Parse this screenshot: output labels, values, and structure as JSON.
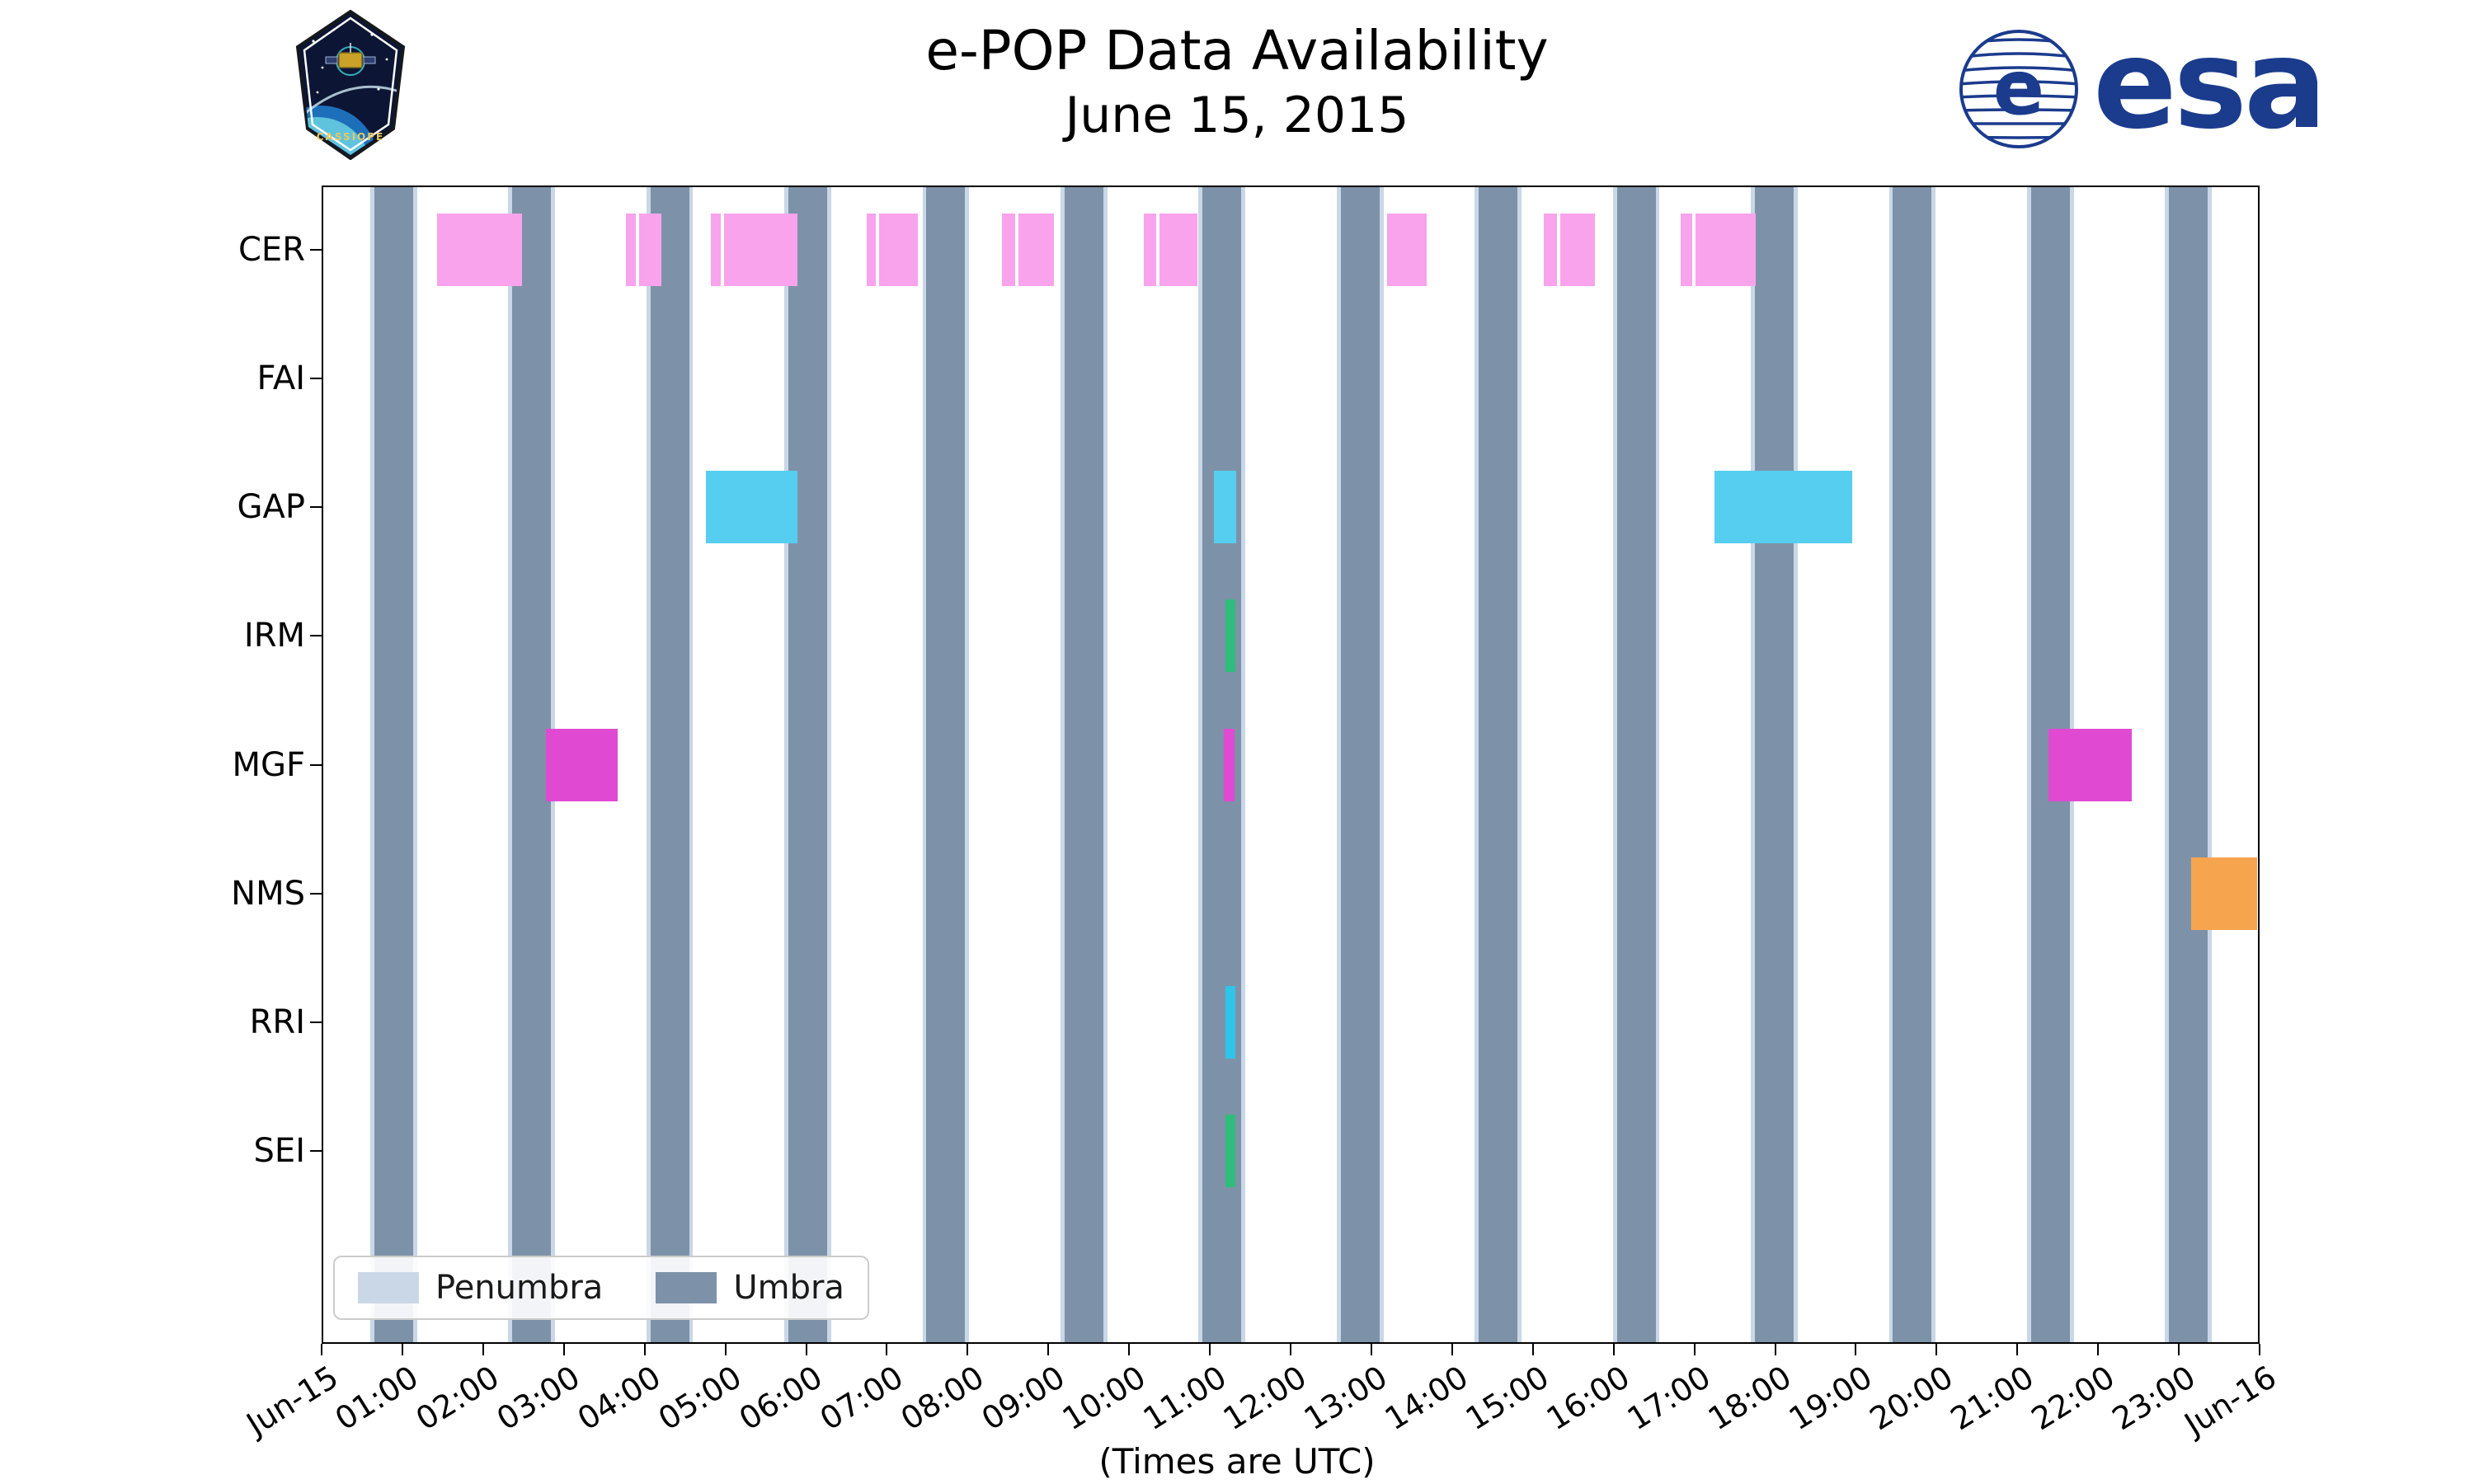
{
  "header": {
    "title": "e-POP Data Availability",
    "subtitle": "June 15, 2015",
    "cassiope_patch_label": "CASSIOPE",
    "esa_logo_label": "esa",
    "esa_emblem_letter": "e"
  },
  "xlabel": "(Times are UTC)",
  "legend": {
    "position": "lower left",
    "items": [
      {
        "label": "Penumbra",
        "color": "#C9D7E6"
      },
      {
        "label": "Umbra",
        "color": "#7D92A8"
      }
    ]
  },
  "colors": {
    "umbra": "#7D92A8",
    "penumbra": "#C9D7E6",
    "esa_blue": "#1B3B8D",
    "axis": "#000000"
  },
  "chart_data": {
    "type": "timeline-gantt",
    "title": "e-POP Data Availability",
    "subtitle": "June 15, 2015",
    "xlabel": "(Times are UTC)",
    "grid": false,
    "legend_position": "lower left",
    "x_range_hours": [
      0,
      24
    ],
    "x_tick_labels": [
      "Jun-15",
      "01:00",
      "02:00",
      "03:00",
      "04:00",
      "05:00",
      "06:00",
      "07:00",
      "08:00",
      "09:00",
      "10:00",
      "11:00",
      "12:00",
      "13:00",
      "14:00",
      "15:00",
      "16:00",
      "17:00",
      "18:00",
      "19:00",
      "20:00",
      "21:00",
      "22:00",
      "23:00",
      "Jun-16"
    ],
    "instruments": [
      "CER",
      "FAI",
      "GAP",
      "IRM",
      "MGF",
      "NMS",
      "RRI",
      "SEI"
    ],
    "umbra": {
      "label": "Umbra",
      "color": "#7D92A8",
      "intervals_hours": [
        [
          0.65,
          1.13
        ],
        [
          2.36,
          2.84
        ],
        [
          4.07,
          4.55
        ],
        [
          5.78,
          6.26
        ],
        [
          7.49,
          7.97
        ],
        [
          9.2,
          9.68
        ],
        [
          10.91,
          11.39
        ],
        [
          12.62,
          13.1
        ],
        [
          14.33,
          14.81
        ],
        [
          16.04,
          16.52
        ],
        [
          17.75,
          18.23
        ],
        [
          19.46,
          19.94
        ],
        [
          21.17,
          21.65
        ],
        [
          22.88,
          23.36
        ]
      ]
    },
    "penumbra": {
      "label": "Penumbra",
      "color": "#C9D7E6",
      "edge_width_hours": 0.05
    },
    "series": [
      {
        "instrument": "CER",
        "color": "#F8A3EC",
        "intervals_hours": [
          [
            1.43,
            2.48
          ],
          [
            3.77,
            3.89
          ],
          [
            3.93,
            4.21
          ],
          [
            4.82,
            4.94
          ],
          [
            4.98,
            5.89
          ],
          [
            6.75,
            6.86
          ],
          [
            6.9,
            7.38
          ],
          [
            8.43,
            8.59
          ],
          [
            8.63,
            9.07
          ],
          [
            10.18,
            10.34
          ],
          [
            10.38,
            10.85
          ],
          [
            13.19,
            13.69
          ],
          [
            15.14,
            15.3
          ],
          [
            15.34,
            15.77
          ],
          [
            16.83,
            16.97
          ],
          [
            17.01,
            17.76
          ]
        ]
      },
      {
        "instrument": "FAI",
        "color": "",
        "intervals_hours": []
      },
      {
        "instrument": "GAP",
        "color": "#55CEF0",
        "intervals_hours": [
          [
            4.76,
            5.89
          ],
          [
            11.05,
            11.33
          ],
          [
            17.25,
            18.95
          ]
        ]
      },
      {
        "instrument": "IRM",
        "color": "#2EBD7A",
        "intervals_hours": [
          [
            11.19,
            11.32
          ]
        ]
      },
      {
        "instrument": "MGF",
        "color": "#E04AD2",
        "intervals_hours": [
          [
            2.78,
            3.67
          ],
          [
            11.17,
            11.31
          ],
          [
            21.39,
            22.42
          ]
        ]
      },
      {
        "instrument": "NMS",
        "color": "#F7A44F",
        "intervals_hours": [
          [
            23.15,
            23.97
          ]
        ]
      },
      {
        "instrument": "RRI",
        "color": "#2FC4EA",
        "intervals_hours": [
          [
            11.19,
            11.32
          ]
        ]
      },
      {
        "instrument": "SEI",
        "color": "#2EBD7A",
        "intervals_hours": [
          [
            11.19,
            11.32
          ]
        ]
      }
    ]
  }
}
